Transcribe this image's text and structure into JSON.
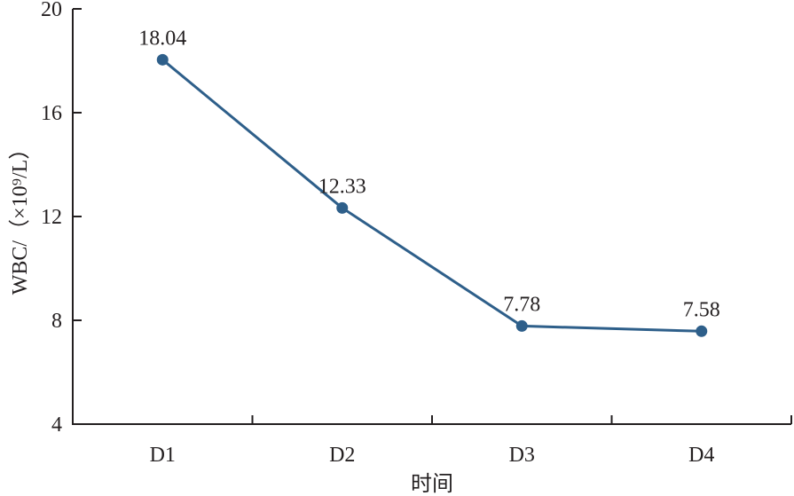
{
  "chart_data": {
    "type": "line",
    "categories": [
      "D1",
      "D2",
      "D3",
      "D4"
    ],
    "series": [
      {
        "values": [
          18.04,
          12.33,
          7.78,
          7.58
        ]
      }
    ],
    "data_labels": [
      "18.04",
      "12.33",
      "7.78",
      "7.58"
    ],
    "xlabel": "时间",
    "ylabel": "WBC/（×10⁹/L）",
    "ylim": [
      4,
      20
    ],
    "yticks": [
      4,
      8,
      12,
      16,
      20
    ],
    "grid": false,
    "line_color": "#2e5f8a",
    "axis_color": "#231f20"
  }
}
